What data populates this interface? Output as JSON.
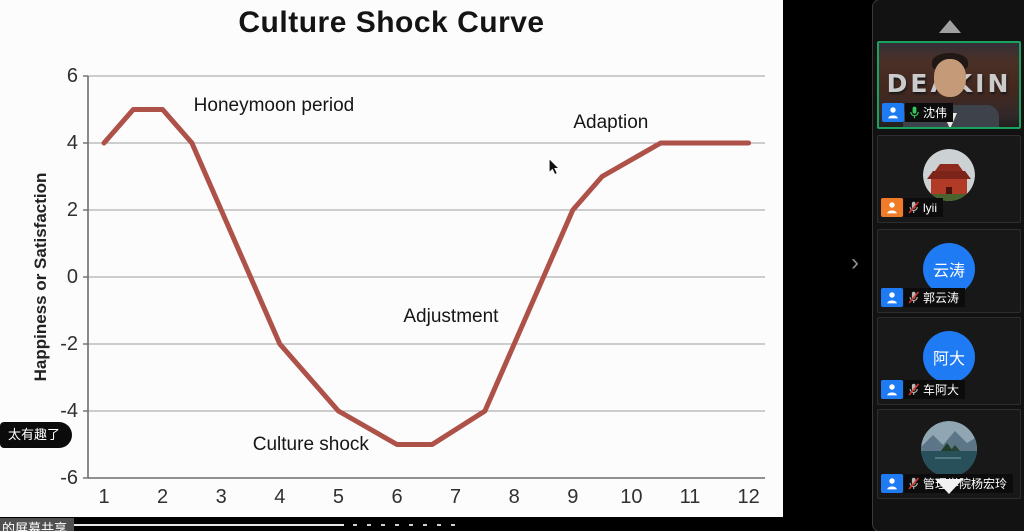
{
  "meeting": {
    "chat_bubble_text": "太有趣了",
    "screen_share_label": "的屏幕共享",
    "expand_chevron": "›"
  },
  "chart_data": {
    "type": "line",
    "title": "Culture Shock Curve",
    "xlabel": "",
    "ylabel": "Happiness or Satisfaction",
    "xlim": [
      1,
      12
    ],
    "ylim": [
      -6,
      6
    ],
    "xticks": [
      1,
      2,
      3,
      4,
      5,
      6,
      7,
      8,
      9,
      10,
      11,
      12
    ],
    "yticks": [
      6,
      4,
      2,
      0,
      -2,
      -4,
      -6
    ],
    "grid": true,
    "legend": false,
    "line_color": "#ad5149",
    "series": [
      {
        "name": "culture shock curve",
        "points": [
          [
            1,
            4
          ],
          [
            1.5,
            5
          ],
          [
            2,
            5
          ],
          [
            2.5,
            4
          ],
          [
            4,
            -2
          ],
          [
            5,
            -4
          ],
          [
            6,
            -5
          ],
          [
            6.6,
            -5
          ],
          [
            7.5,
            -4
          ],
          [
            9,
            2
          ],
          [
            9.5,
            3
          ],
          [
            10.5,
            4
          ],
          [
            12,
            4
          ]
        ]
      }
    ],
    "annotations": [
      {
        "text": "Honeymoon period",
        "x": 3.9,
        "y": 5.1
      },
      {
        "text": "Adaption",
        "x": 9.65,
        "y": 4.6
      },
      {
        "text": "Adjustment",
        "x": 6.92,
        "y": -1.2
      },
      {
        "text": "Culture shock",
        "x": 4.53,
        "y": -5.0
      }
    ]
  },
  "sidebar": {
    "scroll_up_icon": "scroll-up-arrow",
    "scroll_down_icon": "scroll-down-arrow",
    "active_border_color": "#19a35f",
    "avatar_blue": "#1f7bf4",
    "role_orange": "#f07b28",
    "participants": [
      {
        "name": "沈伟",
        "muted": false,
        "type": "video",
        "video_text": "DEAKIN",
        "active_speaker": true
      },
      {
        "name": "lyii",
        "muted": true,
        "type": "photo",
        "photo": "red palace"
      },
      {
        "name": "郭云涛",
        "muted": true,
        "type": "initials",
        "avatar_text": "云涛"
      },
      {
        "name": "车阿大",
        "muted": true,
        "type": "initials",
        "avatar_text": "阿大"
      },
      {
        "name": "管理学院杨宏玲",
        "muted": true,
        "type": "photo",
        "photo": "lake and island"
      }
    ]
  }
}
